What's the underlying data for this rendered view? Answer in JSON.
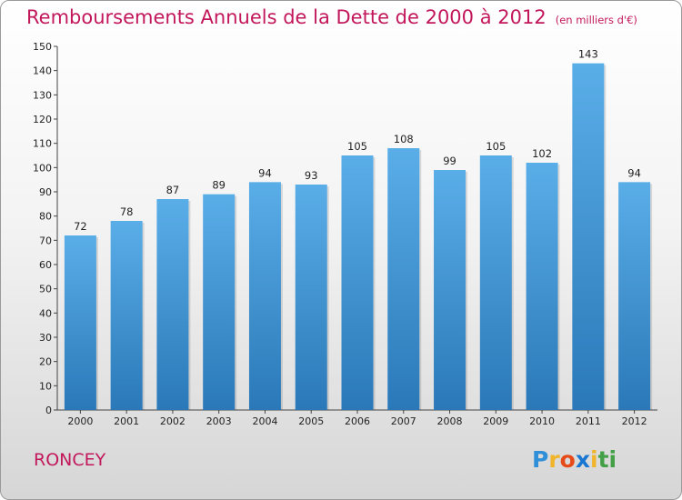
{
  "chart_data": {
    "type": "bar",
    "title": "Remboursements Annuels de la Dette de 2000 à 2012",
    "subtitle": "(en milliers d'€)",
    "categories": [
      "2000",
      "2001",
      "2002",
      "2003",
      "2004",
      "2005",
      "2006",
      "2007",
      "2008",
      "2009",
      "2010",
      "2011",
      "2012"
    ],
    "values": [
      72,
      78,
      87,
      89,
      94,
      93,
      105,
      108,
      99,
      105,
      102,
      143,
      94
    ],
    "ylim": [
      0,
      150
    ],
    "yticks": [
      0,
      10,
      20,
      30,
      40,
      50,
      60,
      70,
      80,
      90,
      100,
      110,
      120,
      130,
      140,
      150
    ],
    "xlabel": "",
    "ylabel": "",
    "grid": false
  },
  "commune": "RONCEY",
  "brand": {
    "letters": [
      "P",
      "r",
      "o",
      "x",
      "i",
      "t",
      "i"
    ],
    "colors": {
      "accent_title": "#c2185b",
      "bar_top": "#5aaee8",
      "bar_bottom": "#2a78b8"
    }
  }
}
